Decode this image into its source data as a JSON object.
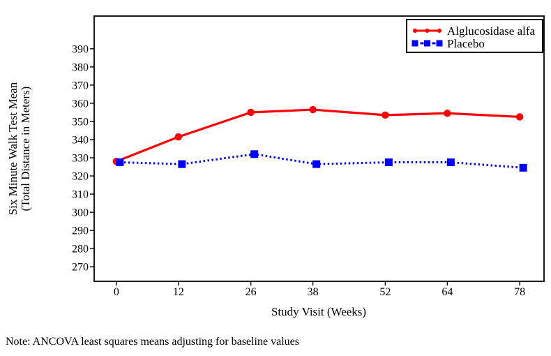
{
  "note": "Note: ANCOVA least squares means adjusting for baseline values",
  "chart_data": {
    "type": "line",
    "title": "",
    "xlabel": "Study Visit (Weeks)",
    "ylabel_lines": [
      "Six Minute Walk Test Mean",
      "(Total Distance in Meters)"
    ],
    "x": [
      0,
      12,
      26,
      38,
      52,
      64,
      78
    ],
    "x_tick_labels": [
      "0",
      "12",
      "26",
      "38",
      "52",
      "64",
      "78"
    ],
    "y_ticks": [
      270,
      280,
      290,
      300,
      310,
      320,
      330,
      340,
      350,
      360,
      370,
      380,
      390
    ],
    "xlim": [
      -4.3,
      82.7
    ],
    "ylim": [
      262,
      408
    ],
    "grid": false,
    "legend_position": "top-right-inside",
    "frame_color": "#000000",
    "series": [
      {
        "name": "Alglucosidase alfa",
        "color": "#ff0000",
        "marker": "circle",
        "line": "solid",
        "values": [
          328,
          341.5,
          355,
          356.5,
          353.5,
          354.5,
          352.5
        ]
      },
      {
        "name": "Placebo",
        "color": "#0000ff",
        "marker": "square",
        "line": "dotted",
        "values": [
          327.5,
          326.5,
          332,
          326.5,
          327.5,
          327.5,
          324.5
        ]
      }
    ]
  }
}
